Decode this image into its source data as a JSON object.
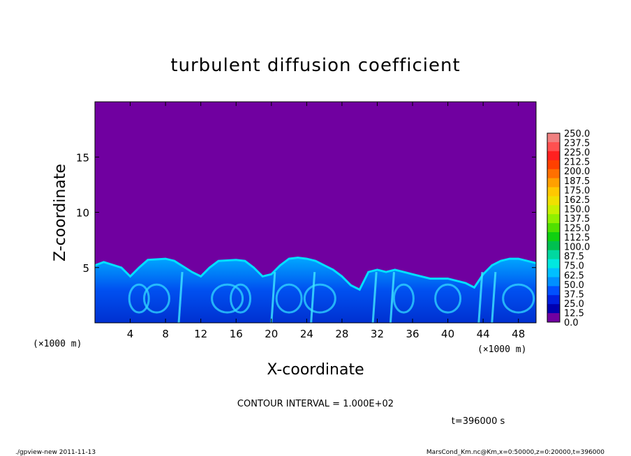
{
  "chart_data": {
    "type": "heatmap",
    "title": "turbulent diffusion coefficient",
    "xlabel": "X-coordinate",
    "ylabel": "Z-coordinate",
    "x_unit": "(×1000 m)",
    "y_unit": "(×1000 m)",
    "xlim": [
      0,
      50
    ],
    "ylim": [
      0,
      20
    ],
    "x_ticks": [
      4,
      8,
      12,
      16,
      20,
      24,
      28,
      32,
      36,
      40,
      44,
      48
    ],
    "y_ticks": [
      5,
      10,
      15
    ],
    "colorbar": {
      "levels": [
        "250.0",
        "237.5",
        "225.0",
        "212.5",
        "200.0",
        "187.5",
        "175.0",
        "162.5",
        "150.0",
        "137.5",
        "125.0",
        "112.5",
        "100.0",
        "87.5",
        "75.0",
        "62.5",
        "50.0",
        "37.5",
        "25.0",
        "12.5",
        "0.0"
      ],
      "colors": [
        "#f08080",
        "#ff5050",
        "#ff2020",
        "#ff4000",
        "#ff7000",
        "#ffa000",
        "#ffc800",
        "#f0e000",
        "#c8f000",
        "#90f000",
        "#50e000",
        "#10d010",
        "#00c050",
        "#00d8a0",
        "#00e8e0",
        "#00c0ff",
        "#0090ff",
        "#0050ff",
        "#0020e0",
        "#0000b0",
        "#7000a0"
      ]
    },
    "background_color": "#7000a0",
    "contour_interval": "CONTOUR INTERVAL = 1.000E+02",
    "time_label": "t=396000 s",
    "boundary_layer": {
      "description_values_x": [
        0,
        1,
        3,
        4,
        5,
        6,
        8,
        9,
        11,
        12,
        13,
        14,
        16,
        17,
        18,
        19,
        20,
        21,
        22,
        23,
        24,
        25,
        26,
        27,
        28,
        29,
        30,
        31,
        32,
        33,
        34,
        35,
        36,
        38,
        40,
        42,
        43,
        44,
        45,
        46,
        47,
        48,
        49,
        50
      ],
      "top_height": [
        5.2,
        5.5,
        5.0,
        4.2,
        5.0,
        5.7,
        5.8,
        5.6,
        4.6,
        4.2,
        5.0,
        5.6,
        5.7,
        5.6,
        5.0,
        4.2,
        4.4,
        5.2,
        5.8,
        5.9,
        5.8,
        5.6,
        5.2,
        4.8,
        4.2,
        3.4,
        3.0,
        4.6,
        4.8,
        4.6,
        4.8,
        4.6,
        4.4,
        4.0,
        4.0,
        3.6,
        3.2,
        4.4,
        5.2,
        5.6,
        5.8,
        5.8,
        5.6,
        5.4
      ]
    }
  },
  "footer": {
    "left": "./gpview-new   2011-11-13",
    "right": "MarsCond_Km.nc@Km,x=0:50000,z=0:20000,t=396000"
  },
  "unit_label_left": "(×1000 m)",
  "unit_label_right": "(×1000 m)"
}
